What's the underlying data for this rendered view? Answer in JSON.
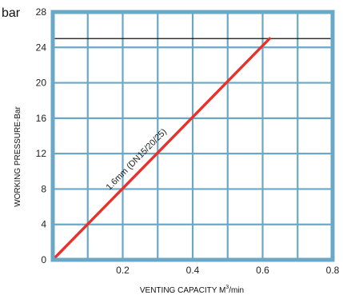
{
  "chart_data": {
    "type": "line",
    "unit_label": "bar",
    "xlabel_main": "VENTING CAPACITY  M",
    "xlabel_sup": "3",
    "xlabel_tail": "/min",
    "ylabel": "WORKING PRESSURE-Bar",
    "xlim": [
      0,
      0.8
    ],
    "ylim": [
      0,
      28
    ],
    "x_ticks": [
      0.2,
      0.4,
      0.6,
      0.8
    ],
    "x_tick_labels": [
      "0.2",
      "0.4",
      "0.6",
      "0.8"
    ],
    "y_ticks": [
      0,
      4,
      8,
      12,
      16,
      20,
      24,
      28
    ],
    "y_tick_labels": [
      "0",
      "4",
      "8",
      "12",
      "16",
      "20",
      "24",
      "28"
    ],
    "grid": true,
    "reference_line": {
      "y": 25
    },
    "series": [
      {
        "name": "1.6mm (DN15/20/25)",
        "color": "#e8312a",
        "points": [
          [
            0.0,
            0.0
          ],
          [
            0.62,
            25.0
          ]
        ]
      }
    ],
    "colors": {
      "frame": "#6aa8c8",
      "grid": "#6aa8c8",
      "series": "#e8312a",
      "reference": "#111111"
    }
  }
}
